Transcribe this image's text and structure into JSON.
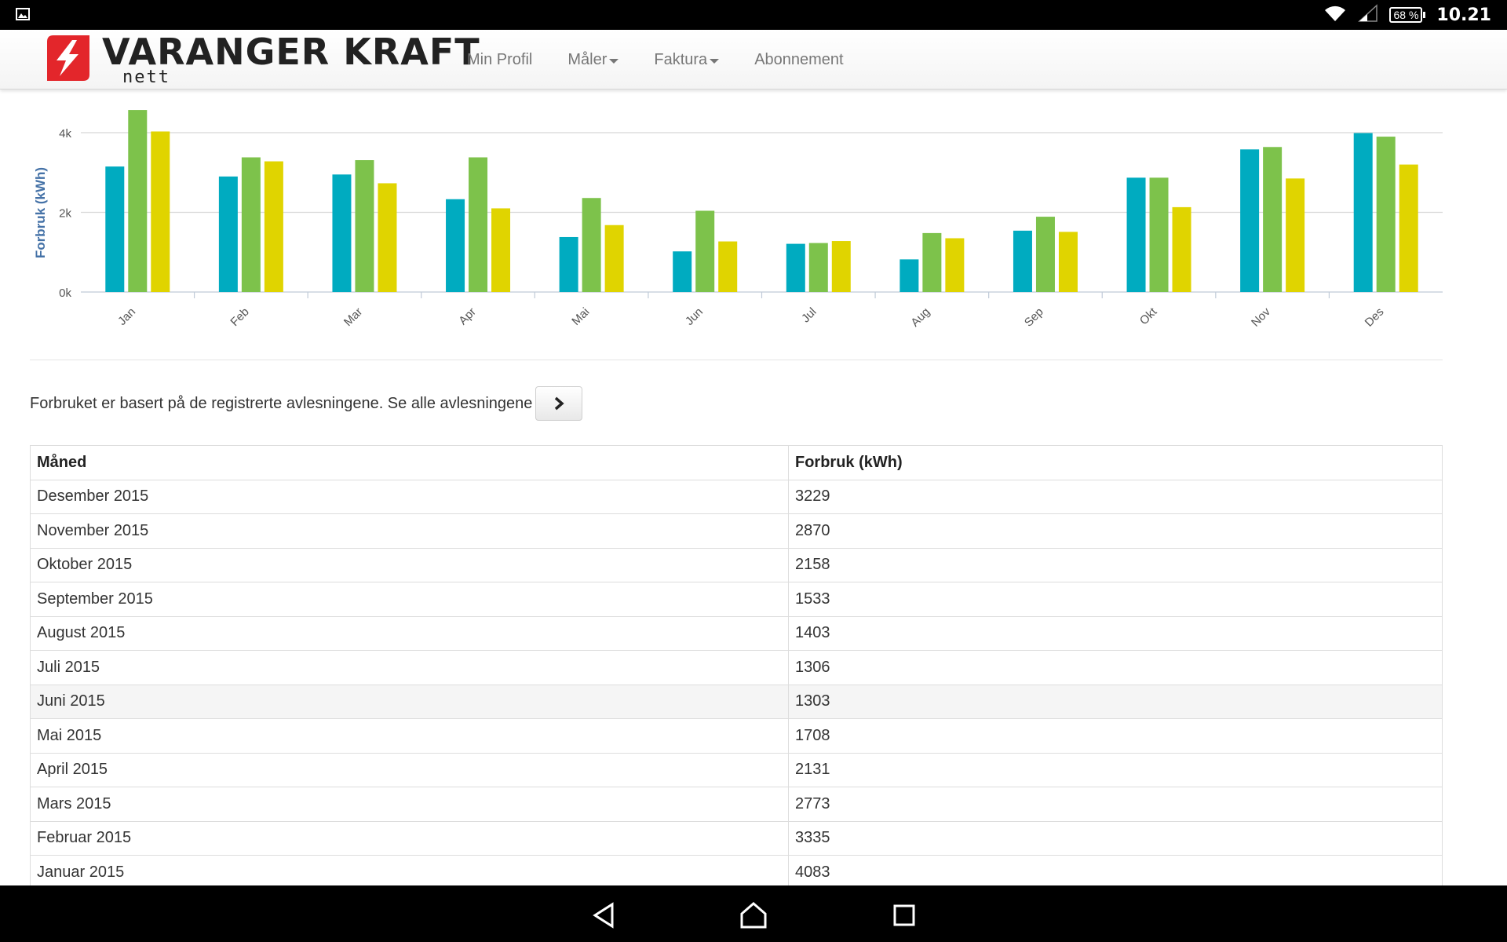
{
  "statusbar": {
    "battery": "68 %",
    "time": "10.21"
  },
  "brand": {
    "name": "VARANGER KRAFT",
    "sub": "nett",
    "color": "#e3262b"
  },
  "nav": {
    "items": [
      "Min Profil",
      "Måler",
      "Faktura",
      "Abonnement"
    ]
  },
  "chart_data": {
    "type": "bar",
    "ylabel": "Forbruk (kWh)",
    "ylim": [
      0,
      4000
    ],
    "yticks": [
      "0k",
      "2k",
      "4k"
    ],
    "categories": [
      "Jan",
      "Feb",
      "Mar",
      "Apr",
      "Mai",
      "Jun",
      "Jul",
      "Aug",
      "Sep",
      "Okt",
      "Nov",
      "Des"
    ],
    "series": [
      {
        "color": "#00abc0",
        "values": [
          3150,
          2900,
          2950,
          2330,
          1380,
          1020,
          1210,
          820,
          1540,
          2870,
          3580,
          3990
        ]
      },
      {
        "color": "#7dc24b",
        "values": [
          4570,
          3380,
          3310,
          3380,
          2360,
          2040,
          1230,
          1480,
          1890,
          2870,
          3640,
          3900
        ]
      },
      {
        "color": "#e0d400",
        "values": [
          4030,
          3280,
          2730,
          2100,
          1680,
          1270,
          1280,
          1350,
          1510,
          2130,
          2850,
          3200
        ]
      }
    ],
    "grid": true
  },
  "info": {
    "text": "Forbruket er basert på de registrerte avlesningene. Se alle avlesningene"
  },
  "table": {
    "headers": [
      "Måned",
      "Forbruk (kWh)"
    ],
    "rows": [
      [
        "Desember 2015",
        "3229"
      ],
      [
        "November 2015",
        "2870"
      ],
      [
        "Oktober 2015",
        "2158"
      ],
      [
        "September 2015",
        "1533"
      ],
      [
        "August 2015",
        "1403"
      ],
      [
        "Juli 2015",
        "1306"
      ],
      [
        "Juni 2015",
        "1303"
      ],
      [
        "Mai 2015",
        "1708"
      ],
      [
        "April 2015",
        "2131"
      ],
      [
        "Mars 2015",
        "2773"
      ],
      [
        "Februar 2015",
        "3335"
      ],
      [
        "Januar 2015",
        "4083"
      ]
    ]
  }
}
